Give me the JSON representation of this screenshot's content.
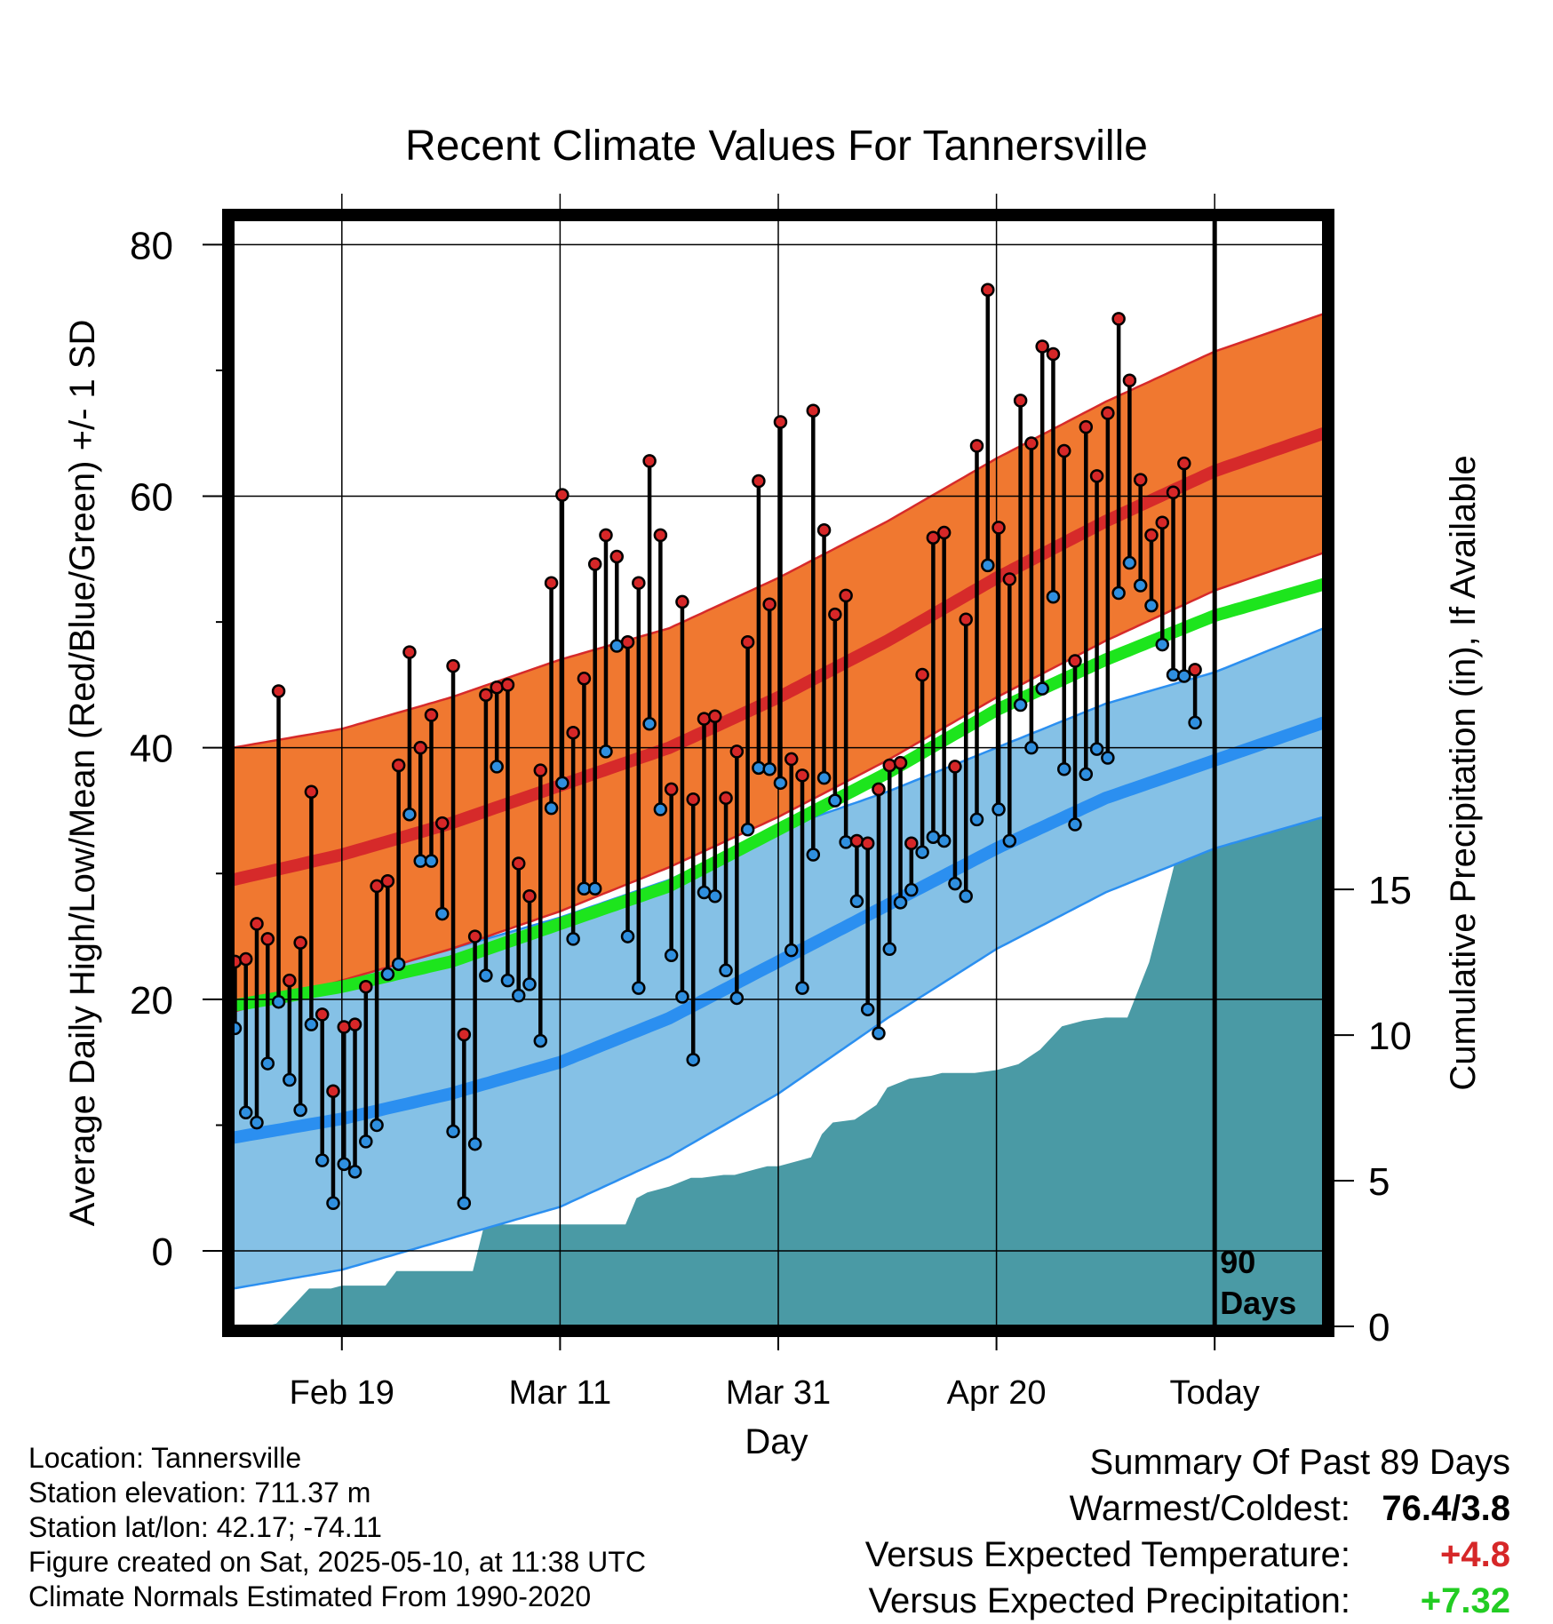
{
  "chart_data": {
    "type": "line",
    "title": "Recent Climate Values For Tannersville",
    "xlabel": "Day",
    "ylabel": "Average Daily High/Low/Mean (Red/Blue/Green) +/- 1 SD",
    "y2label": "Cumulative Precipitation (in), If Available",
    "ylim": [
      -6,
      82
    ],
    "y_ticks": [
      0,
      20,
      40,
      60,
      80
    ],
    "y2lim": [
      0,
      38
    ],
    "y2_ticks": [
      0,
      5,
      10,
      15
    ],
    "x_range_days": [
      0,
      100
    ],
    "x_ticks": [
      {
        "day": 10,
        "label": "Feb 19"
      },
      {
        "day": 30,
        "label": "Mar 11"
      },
      {
        "day": 50,
        "label": "Mar 31"
      },
      {
        "day": 70,
        "label": "Apr 20"
      },
      {
        "day": 90,
        "label": "Today"
      }
    ],
    "today_day": 90,
    "today_label_line1": "90",
    "today_label_line2": "Days",
    "grid": true,
    "normals": {
      "days": [
        0,
        10,
        20,
        30,
        40,
        50,
        60,
        70,
        80,
        90,
        100
      ],
      "high_mean": [
        29.5,
        31.5,
        34,
        37,
        40,
        44,
        48.5,
        53.5,
        58,
        62,
        65
      ],
      "high_sd": [
        10.5,
        10,
        10,
        10,
        9.5,
        9.5,
        9.5,
        9.5,
        9.5,
        9.5,
        9.5
      ],
      "low_mean": [
        9,
        10.5,
        12.5,
        15,
        18.5,
        23,
        27.5,
        32,
        36,
        39,
        42
      ],
      "low_sd": [
        12,
        12,
        11.5,
        11.5,
        11,
        10.5,
        9,
        8,
        7.5,
        7,
        7.5
      ],
      "avg_mean": [
        19.5,
        21,
        23,
        26,
        29,
        33.5,
        38,
        43,
        47,
        50.5,
        53
      ]
    },
    "series": [
      {
        "name": "High",
        "color": "#d62728",
        "values": [
          23,
          23.2,
          26,
          24.8,
          44.5,
          21.5,
          24.5,
          36.5,
          18.8,
          12.7,
          17.8,
          18,
          21,
          29,
          29.4,
          38.6,
          47.6,
          40,
          42.6,
          34,
          46.5,
          17.2,
          25,
          44.2,
          44.8,
          45,
          30.8,
          28.2,
          38.2,
          53.1,
          60.1,
          41.2,
          45.5,
          54.6,
          56.9,
          55.2,
          48.4,
          53.1,
          62.8,
          56.9,
          36.7,
          51.6,
          35.9,
          42.3,
          42.5,
          36,
          39.7,
          48.4,
          61.2,
          51.4,
          65.9,
          39.1,
          37.8,
          66.8,
          57.3,
          50.6,
          52.1,
          32.6,
          32.4,
          36.7,
          38.6,
          38.8,
          32.4,
          45.8,
          56.7,
          57.1,
          38.5,
          50.2,
          64,
          76.4,
          57.5,
          53.4,
          67.6,
          64.2,
          71.9,
          71.3,
          63.6,
          46.9,
          65.5,
          61.6,
          66.6,
          74.1,
          69.2,
          61.3,
          56.9,
          57.9,
          60.3,
          62.6,
          46.2
        ],
        "start_day": 0
      },
      {
        "name": "Low",
        "color": "#2f8fdf",
        "values": [
          17.7,
          11,
          10.2,
          14.9,
          19.8,
          13.6,
          11.2,
          18,
          7.2,
          3.8,
          6.9,
          6.3,
          8.7,
          10,
          22,
          22.8,
          34.7,
          31,
          31,
          26.8,
          9.5,
          3.8,
          8.5,
          21.9,
          38.5,
          21.5,
          20.3,
          21.2,
          16.7,
          35.2,
          37.2,
          24.8,
          28.8,
          28.8,
          39.7,
          48.1,
          25,
          20.9,
          41.9,
          35.1,
          23.5,
          20.2,
          15.2,
          28.5,
          28.2,
          22.3,
          20.1,
          33.5,
          38.4,
          38.3,
          37.2,
          23.9,
          20.9,
          31.5,
          37.6,
          35.8,
          32.5,
          27.8,
          19.2,
          17.3,
          24,
          27.7,
          28.7,
          31.7,
          32.9,
          32.6,
          29.2,
          28.2,
          34.3,
          54.5,
          35.1,
          32.6,
          43.4,
          40,
          44.7,
          52,
          38.3,
          33.9,
          37.9,
          39.9,
          39.2,
          52.3,
          54.7,
          52.9,
          51.3,
          48.2,
          45.8,
          45.7,
          42
        ],
        "start_day": 0
      },
      {
        "name": "Cumulative Precipitation",
        "color": "#4a9aa5",
        "days": [
          0,
          3,
          4,
          5,
          7,
          9,
          10,
          12,
          14,
          15,
          17,
          18,
          20,
          22,
          23,
          24,
          26,
          28,
          29,
          30,
          32,
          34,
          35,
          36,
          37,
          38,
          40,
          42,
          43,
          45,
          46,
          48,
          49,
          50,
          52,
          53,
          54,
          55,
          57,
          59,
          60,
          62,
          64,
          65,
          66,
          68,
          70,
          72,
          74,
          76,
          77,
          78,
          80,
          82,
          84,
          86,
          87,
          88,
          89,
          90,
          91,
          92,
          100
        ],
        "values": [
          0,
          0,
          0.1,
          0.5,
          1.3,
          1.3,
          1.4,
          1.4,
          1.4,
          1.9,
          1.9,
          1.9,
          1.9,
          1.9,
          3.4,
          3.5,
          3.5,
          3.5,
          3.5,
          3.5,
          3.5,
          3.5,
          3.5,
          3.5,
          4.4,
          4.6,
          4.8,
          5.1,
          5.1,
          5.2,
          5.2,
          5.4,
          5.5,
          5.5,
          5.7,
          5.8,
          6.6,
          7.0,
          7.1,
          7.6,
          8.2,
          8.5,
          8.6,
          8.7,
          8.7,
          8.7,
          8.8,
          9.0,
          9.5,
          10.3,
          10.4,
          10.5,
          10.6,
          10.6,
          12.5,
          15.4,
          16.9,
          17.3,
          18.9,
          19.4,
          19.4,
          19.4,
          19.4
        ]
      }
    ]
  },
  "footer": {
    "location": "Location: Tannersville",
    "elevation": "Station elevation: 711.37 m",
    "latlon": "Station lat/lon: 42.17; -74.11",
    "created": "Figure created on Sat, 2025-05-10, at 11:38 UTC",
    "normals": "Climate Normals Estimated From 1990-2020"
  },
  "summary": {
    "title": "Summary Of Past 89 Days",
    "warmest_label": "Warmest/Coldest:",
    "warmest_value": "76.4/3.8",
    "temp_label": "Versus Expected Temperature:",
    "temp_value": "+4.8",
    "precip_label": "Versus Expected Precipitation:",
    "precip_value": "+7.32"
  },
  "colors": {
    "high_band": "#f07830",
    "high_mean": "#d62a2a",
    "low_band": "#85c1e6",
    "low_mean": "#2b8ff0",
    "avg_mean": "#1de51d",
    "precip": "#4a9aa5",
    "frame": "#000000"
  }
}
